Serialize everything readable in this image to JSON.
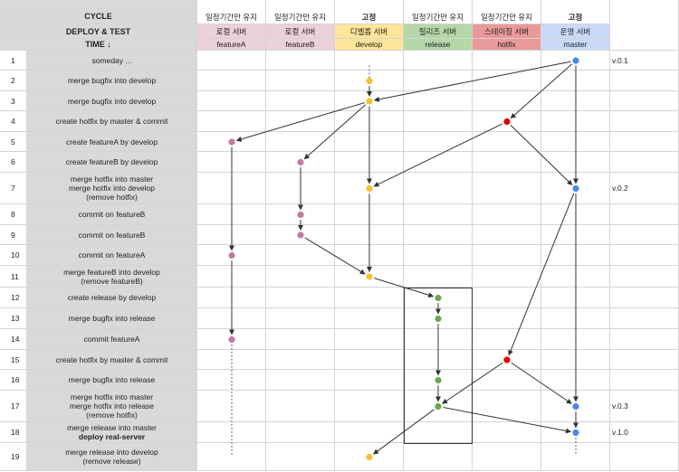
{
  "header": {
    "cycle_label": "CYCLE",
    "deploy_label": "DEPLOY & TEST",
    "time_label": "TIME ↓"
  },
  "columns": [
    {
      "id": "featureA",
      "cycle": "일정기간만 유지",
      "cycle_fixed": false,
      "server": "로컬 서버",
      "branch": "featureA",
      "color": "#ead1dc"
    },
    {
      "id": "featureB",
      "cycle": "일정기간만 유지",
      "cycle_fixed": false,
      "server": "로컬 서버",
      "branch": "featureB",
      "color": "#ead1dc"
    },
    {
      "id": "develop",
      "cycle": "고정",
      "cycle_fixed": true,
      "server": "디벨롭 서버",
      "branch": "develop",
      "color": "#ffe599"
    },
    {
      "id": "release",
      "cycle": "일정기간만 유지",
      "cycle_fixed": false,
      "server": "릴리즈 서버",
      "branch": "release",
      "color": "#b6d7a8"
    },
    {
      "id": "hotfix",
      "cycle": "일정기간만 유지",
      "cycle_fixed": false,
      "server": "스테이징 서버",
      "branch": "hotfix",
      "color": "#ea9999"
    },
    {
      "id": "master",
      "cycle": "고정",
      "cycle_fixed": true,
      "server": "운영 서버",
      "branch": "master",
      "color": "#c9daf8"
    }
  ],
  "rows": [
    {
      "num": "1",
      "lines": [
        "someday ..."
      ],
      "version": "v.0.1"
    },
    {
      "num": "2",
      "lines": [
        "merge bugfix into develop"
      ],
      "version": ""
    },
    {
      "num": "3",
      "lines": [
        "merge bugfix into develop"
      ],
      "version": ""
    },
    {
      "num": "4",
      "lines": [
        "create hotfix by master & commit"
      ],
      "version": ""
    },
    {
      "num": "5",
      "lines": [
        "create featureA by develop"
      ],
      "version": ""
    },
    {
      "num": "6",
      "lines": [
        "create featureB by develop"
      ],
      "version": ""
    },
    {
      "num": "7",
      "lines": [
        "merge hotfix into master",
        "merge hotfix into develop",
        "(remove hotfix)"
      ],
      "version": "v.0.2"
    },
    {
      "num": "8",
      "lines": [
        "commit on featureB"
      ],
      "version": ""
    },
    {
      "num": "9",
      "lines": [
        "commit on featureB"
      ],
      "version": ""
    },
    {
      "num": "10",
      "lines": [
        "commit on featureA"
      ],
      "version": ""
    },
    {
      "num": "11",
      "lines": [
        "merge featureB into develop",
        "(remove featureB)"
      ],
      "version": ""
    },
    {
      "num": "12",
      "lines": [
        "create release by develop"
      ],
      "version": ""
    },
    {
      "num": "13",
      "lines": [
        "merge bugfix into release"
      ],
      "version": ""
    },
    {
      "num": "14",
      "lines": [
        "commit featureA"
      ],
      "version": ""
    },
    {
      "num": "15",
      "lines": [
        "create hotfix by master & commit"
      ],
      "version": ""
    },
    {
      "num": "16",
      "lines": [
        "merge bugfix into release"
      ],
      "version": ""
    },
    {
      "num": "17",
      "lines": [
        "merge hotfix into master",
        "merge hotfix into release",
        "(remove hotfix)"
      ],
      "version": "v.0.3"
    },
    {
      "num": "18",
      "lines": [
        "merge release into master",
        "deploy real-server"
      ],
      "bold_second": true,
      "version": "v.1.0"
    },
    {
      "num": "19",
      "lines": [
        "merge release into develop",
        "(remove release)"
      ],
      "version": ""
    }
  ],
  "colors": {
    "featureA": "#c27ba0",
    "featureB": "#c27ba0",
    "develop": "#f1c232",
    "release": "#6aa84f",
    "hotfix": "#e00000",
    "master": "#4a86e8"
  },
  "commits": [
    {
      "branch": "develop",
      "row": 1,
      "faded": true
    },
    {
      "branch": "master",
      "row": 1
    },
    {
      "branch": "develop",
      "row": 2
    },
    {
      "branch": "develop",
      "row": 3
    },
    {
      "branch": "hotfix",
      "row": 4
    },
    {
      "branch": "featureA",
      "row": 5
    },
    {
      "branch": "featureB",
      "row": 6
    },
    {
      "branch": "develop",
      "row": 7
    },
    {
      "branch": "master",
      "row": 7
    },
    {
      "branch": "featureB",
      "row": 8
    },
    {
      "branch": "featureB",
      "row": 9
    },
    {
      "branch": "featureA",
      "row": 10
    },
    {
      "branch": "develop",
      "row": 11
    },
    {
      "branch": "release",
      "row": 12
    },
    {
      "branch": "release",
      "row": 13
    },
    {
      "branch": "featureA",
      "row": 14
    },
    {
      "branch": "hotfix",
      "row": 15
    },
    {
      "branch": "release",
      "row": 16
    },
    {
      "branch": "master",
      "row": 17
    },
    {
      "branch": "release",
      "row": 17
    },
    {
      "branch": "master",
      "row": 18
    },
    {
      "branch": "develop",
      "row": 19
    }
  ],
  "edges": [
    {
      "from": [
        "develop",
        1
      ],
      "to": [
        "develop",
        2
      ],
      "style": "dotted"
    },
    {
      "from": [
        "develop",
        2
      ],
      "to": [
        "develop",
        3
      ],
      "style": "solid"
    },
    {
      "from": [
        "master",
        1
      ],
      "to": [
        "develop",
        3
      ],
      "style": "solid"
    },
    {
      "from": [
        "master",
        1
      ],
      "to": [
        "hotfix",
        4
      ],
      "style": "solid"
    },
    {
      "from": [
        "develop",
        3
      ],
      "to": [
        "featureA",
        5
      ],
      "style": "solid"
    },
    {
      "from": [
        "develop",
        3
      ],
      "to": [
        "featureB",
        6
      ],
      "style": "solid"
    },
    {
      "from": [
        "develop",
        3
      ],
      "to": [
        "develop",
        7
      ],
      "style": "solid"
    },
    {
      "from": [
        "hotfix",
        4
      ],
      "to": [
        "develop",
        7
      ],
      "style": "solid"
    },
    {
      "from": [
        "hotfix",
        4
      ],
      "to": [
        "master",
        7
      ],
      "style": "solid"
    },
    {
      "from": [
        "master",
        1
      ],
      "to": [
        "master",
        7
      ],
      "style": "solid"
    },
    {
      "from": [
        "featureB",
        6
      ],
      "to": [
        "featureB",
        8
      ],
      "style": "solid"
    },
    {
      "from": [
        "featureB",
        8
      ],
      "to": [
        "featureB",
        9
      ],
      "style": "solid"
    },
    {
      "from": [
        "featureA",
        5
      ],
      "to": [
        "featureA",
        10
      ],
      "style": "solid"
    },
    {
      "from": [
        "develop",
        7
      ],
      "to": [
        "develop",
        11
      ],
      "style": "solid"
    },
    {
      "from": [
        "featureB",
        9
      ],
      "to": [
        "develop",
        11
      ],
      "style": "solid"
    },
    {
      "from": [
        "develop",
        11
      ],
      "to": [
        "release",
        12
      ],
      "style": "solid"
    },
    {
      "from": [
        "release",
        12
      ],
      "to": [
        "release",
        13
      ],
      "style": "solid"
    },
    {
      "from": [
        "featureA",
        10
      ],
      "to": [
        "featureA",
        14
      ],
      "style": "solid"
    },
    {
      "from": [
        "master",
        7
      ],
      "to": [
        "hotfix",
        15
      ],
      "style": "solid"
    },
    {
      "from": [
        "release",
        13
      ],
      "to": [
        "release",
        16
      ],
      "style": "solid"
    },
    {
      "from": [
        "hotfix",
        15
      ],
      "to": [
        "release",
        17
      ],
      "style": "solid"
    },
    {
      "from": [
        "hotfix",
        15
      ],
      "to": [
        "master",
        17
      ],
      "style": "solid"
    },
    {
      "from": [
        "master",
        7
      ],
      "to": [
        "master",
        17
      ],
      "style": "solid"
    },
    {
      "from": [
        "release",
        16
      ],
      "to": [
        "release",
        17
      ],
      "style": "solid"
    },
    {
      "from": [
        "release",
        17
      ],
      "to": [
        "master",
        18
      ],
      "style": "solid"
    },
    {
      "from": [
        "master",
        17
      ],
      "to": [
        "master",
        18
      ],
      "style": "solid"
    },
    {
      "from": [
        "release",
        17
      ],
      "to": [
        "develop",
        19
      ],
      "style": "solid"
    },
    {
      "from": [
        "featureA",
        14
      ],
      "to": [
        "featureA",
        19
      ],
      "style": "dotted"
    },
    {
      "from": [
        "master",
        18
      ],
      "to": [
        "master",
        19
      ],
      "style": "dotted"
    }
  ]
}
